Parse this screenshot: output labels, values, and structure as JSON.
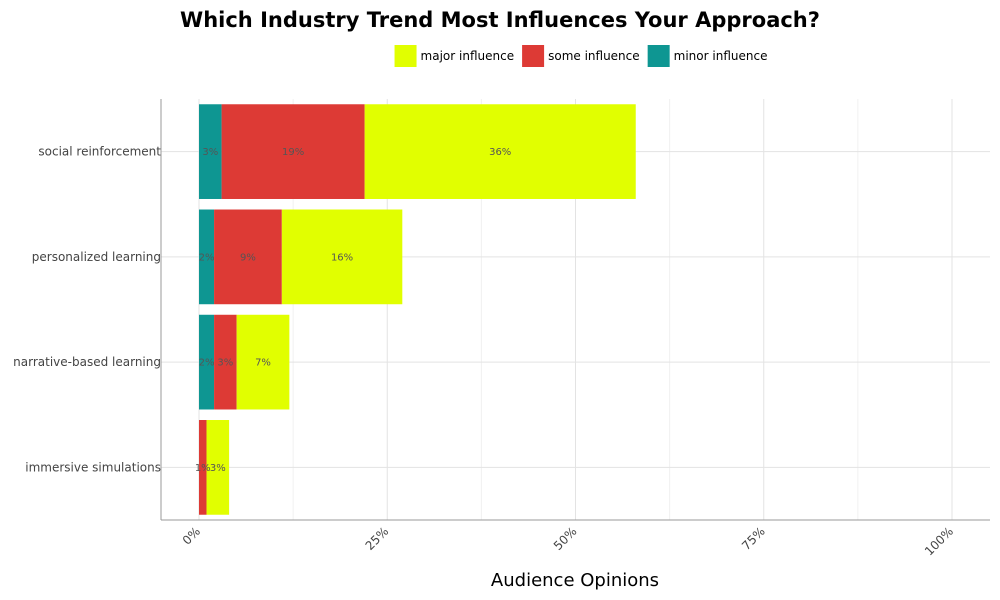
{
  "chart_data": {
    "type": "bar",
    "orientation": "horizontal",
    "stacked": true,
    "title": "Which Industry Trend Most Influences Your Approach?",
    "xlabel": "Audience Opinions",
    "ylabel": "",
    "xlim": [
      0,
      100
    ],
    "x_ticks": [
      "0%",
      "25%",
      "50%",
      "75%",
      "100%"
    ],
    "grid": true,
    "legend_position": "top",
    "categories": [
      "social reinforcement",
      "personalized learning",
      "narrative-based learning",
      "immersive simulations"
    ],
    "series": [
      {
        "name": "minor influence",
        "color": "#0e9692",
        "values": [
          3,
          2,
          2,
          0
        ]
      },
      {
        "name": "some influence",
        "color": "#dd3a35",
        "values": [
          19,
          9,
          3,
          1
        ]
      },
      {
        "name": "major influence",
        "color": "#e1ff00",
        "values": [
          36,
          16,
          7,
          3
        ]
      }
    ],
    "data_labels": [
      [
        "3%",
        "19%",
        "36%"
      ],
      [
        "2%",
        "9%",
        "16%"
      ],
      [
        "2%",
        "3%",
        "7%"
      ],
      [
        "",
        "1%",
        "3%"
      ]
    ],
    "legend_order": [
      "major influence",
      "some influence",
      "minor influence"
    ]
  }
}
